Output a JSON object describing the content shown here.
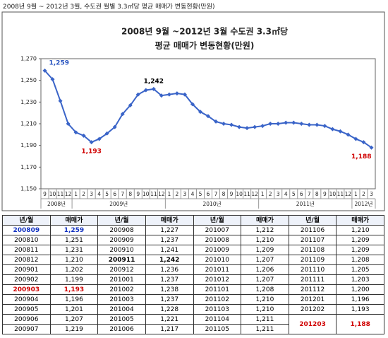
{
  "header": {
    "title": "2008년 9월 ~ 2012년 3월, 수도권 월별 3.3㎡당 평균 매매가 변동현황(만원)"
  },
  "chart_data": {
    "type": "line",
    "title": "2008년 9월 ~2012년 3월 수도권 3.3㎡당",
    "subtitle": "평균 매매가 변동현황(만원)",
    "categories": [
      "9",
      "10",
      "11",
      "12",
      "1",
      "2",
      "3",
      "4",
      "5",
      "6",
      "7",
      "8",
      "9",
      "10",
      "11",
      "12",
      "1",
      "2",
      "3",
      "4",
      "5",
      "6",
      "7",
      "8",
      "9",
      "10",
      "11",
      "12",
      "1",
      "2",
      "3",
      "4",
      "5",
      "6",
      "7",
      "8",
      "9",
      "10",
      "11",
      "12",
      "1",
      "2",
      "3"
    ],
    "x_groups": [
      "2008년",
      "2009년",
      "2010년",
      "2011년",
      "2012년"
    ],
    "values": [
      1259,
      1251,
      1231,
      1210,
      1202,
      1199,
      1193,
      1196,
      1201,
      1207,
      1219,
      1227,
      1237,
      1241,
      1242,
      1236,
      1237,
      1238,
      1237,
      1228,
      1221,
      1217,
      1212,
      1210,
      1209,
      1207,
      1206,
      1207,
      1208,
      1210,
      1210,
      1211,
      1211,
      1210,
      1209,
      1209,
      1208,
      1205,
      1203,
      1200,
      1196,
      1193,
      1188
    ],
    "value_labels": [
      "1,259",
      null,
      null,
      null,
      null,
      null,
      "1,193",
      null,
      null,
      null,
      null,
      null,
      null,
      null,
      "1,242",
      null,
      null,
      null,
      null,
      null,
      null,
      null,
      null,
      null,
      null,
      null,
      null,
      null,
      null,
      null,
      null,
      null,
      null,
      null,
      null,
      null,
      null,
      null,
      null,
      null,
      null,
      null,
      "1,188"
    ],
    "color": "#3a64c8",
    "ylim": [
      1150,
      1270
    ],
    "yticks": [
      {
        "value": 1150,
        "label": "1,150"
      },
      {
        "value": 1170,
        "label": "1,170"
      },
      {
        "value": 1190,
        "label": "1,190"
      },
      {
        "value": 1210,
        "label": "1,210"
      },
      {
        "value": 1230,
        "label": "1,230"
      },
      {
        "value": 1250,
        "label": "1,250"
      },
      {
        "value": 1270,
        "label": "1,270"
      }
    ]
  },
  "table": {
    "columns": [
      "년/월",
      "매매가",
      "년/월",
      "매매가",
      "년/월",
      "매매가",
      "년/월",
      "매매가"
    ],
    "rows": [
      [
        "200809",
        "1,259",
        "200908",
        "1,227",
        "201007",
        "1,212",
        "201106",
        "1,210"
      ],
      [
        "200810",
        "1,251",
        "200909",
        "1,237",
        "201008",
        "1,210",
        "201107",
        "1,209"
      ],
      [
        "200811",
        "1,231",
        "200910",
        "1,241",
        "201009",
        "1,209",
        "201108",
        "1,209"
      ],
      [
        "200812",
        "1,210",
        "200911",
        "1,242",
        "201010",
        "1,207",
        "201109",
        "1,208"
      ],
      [
        "200901",
        "1,202",
        "200912",
        "1,236",
        "201011",
        "1,206",
        "201110",
        "1,205"
      ],
      [
        "200902",
        "1,199",
        "201001",
        "1,237",
        "201012",
        "1,207",
        "201111",
        "1,203"
      ],
      [
        "200903",
        "1,193",
        "201002",
        "1,238",
        "201101",
        "1,208",
        "201112",
        "1,200"
      ],
      [
        "200904",
        "1,196",
        "201003",
        "1,237",
        "201102",
        "1,210",
        "201201",
        "1,196"
      ],
      [
        "200905",
        "1,201",
        "201004",
        "1,228",
        "201103",
        "1,210",
        "201202",
        "1,193"
      ],
      [
        "200906",
        "1,207",
        "201005",
        "1,221",
        "201104",
        "1,211",
        "201203",
        "1,188"
      ],
      [
        "200907",
        "1,219",
        "201006",
        "1,217",
        "201105",
        "1,211"
      ]
    ]
  }
}
